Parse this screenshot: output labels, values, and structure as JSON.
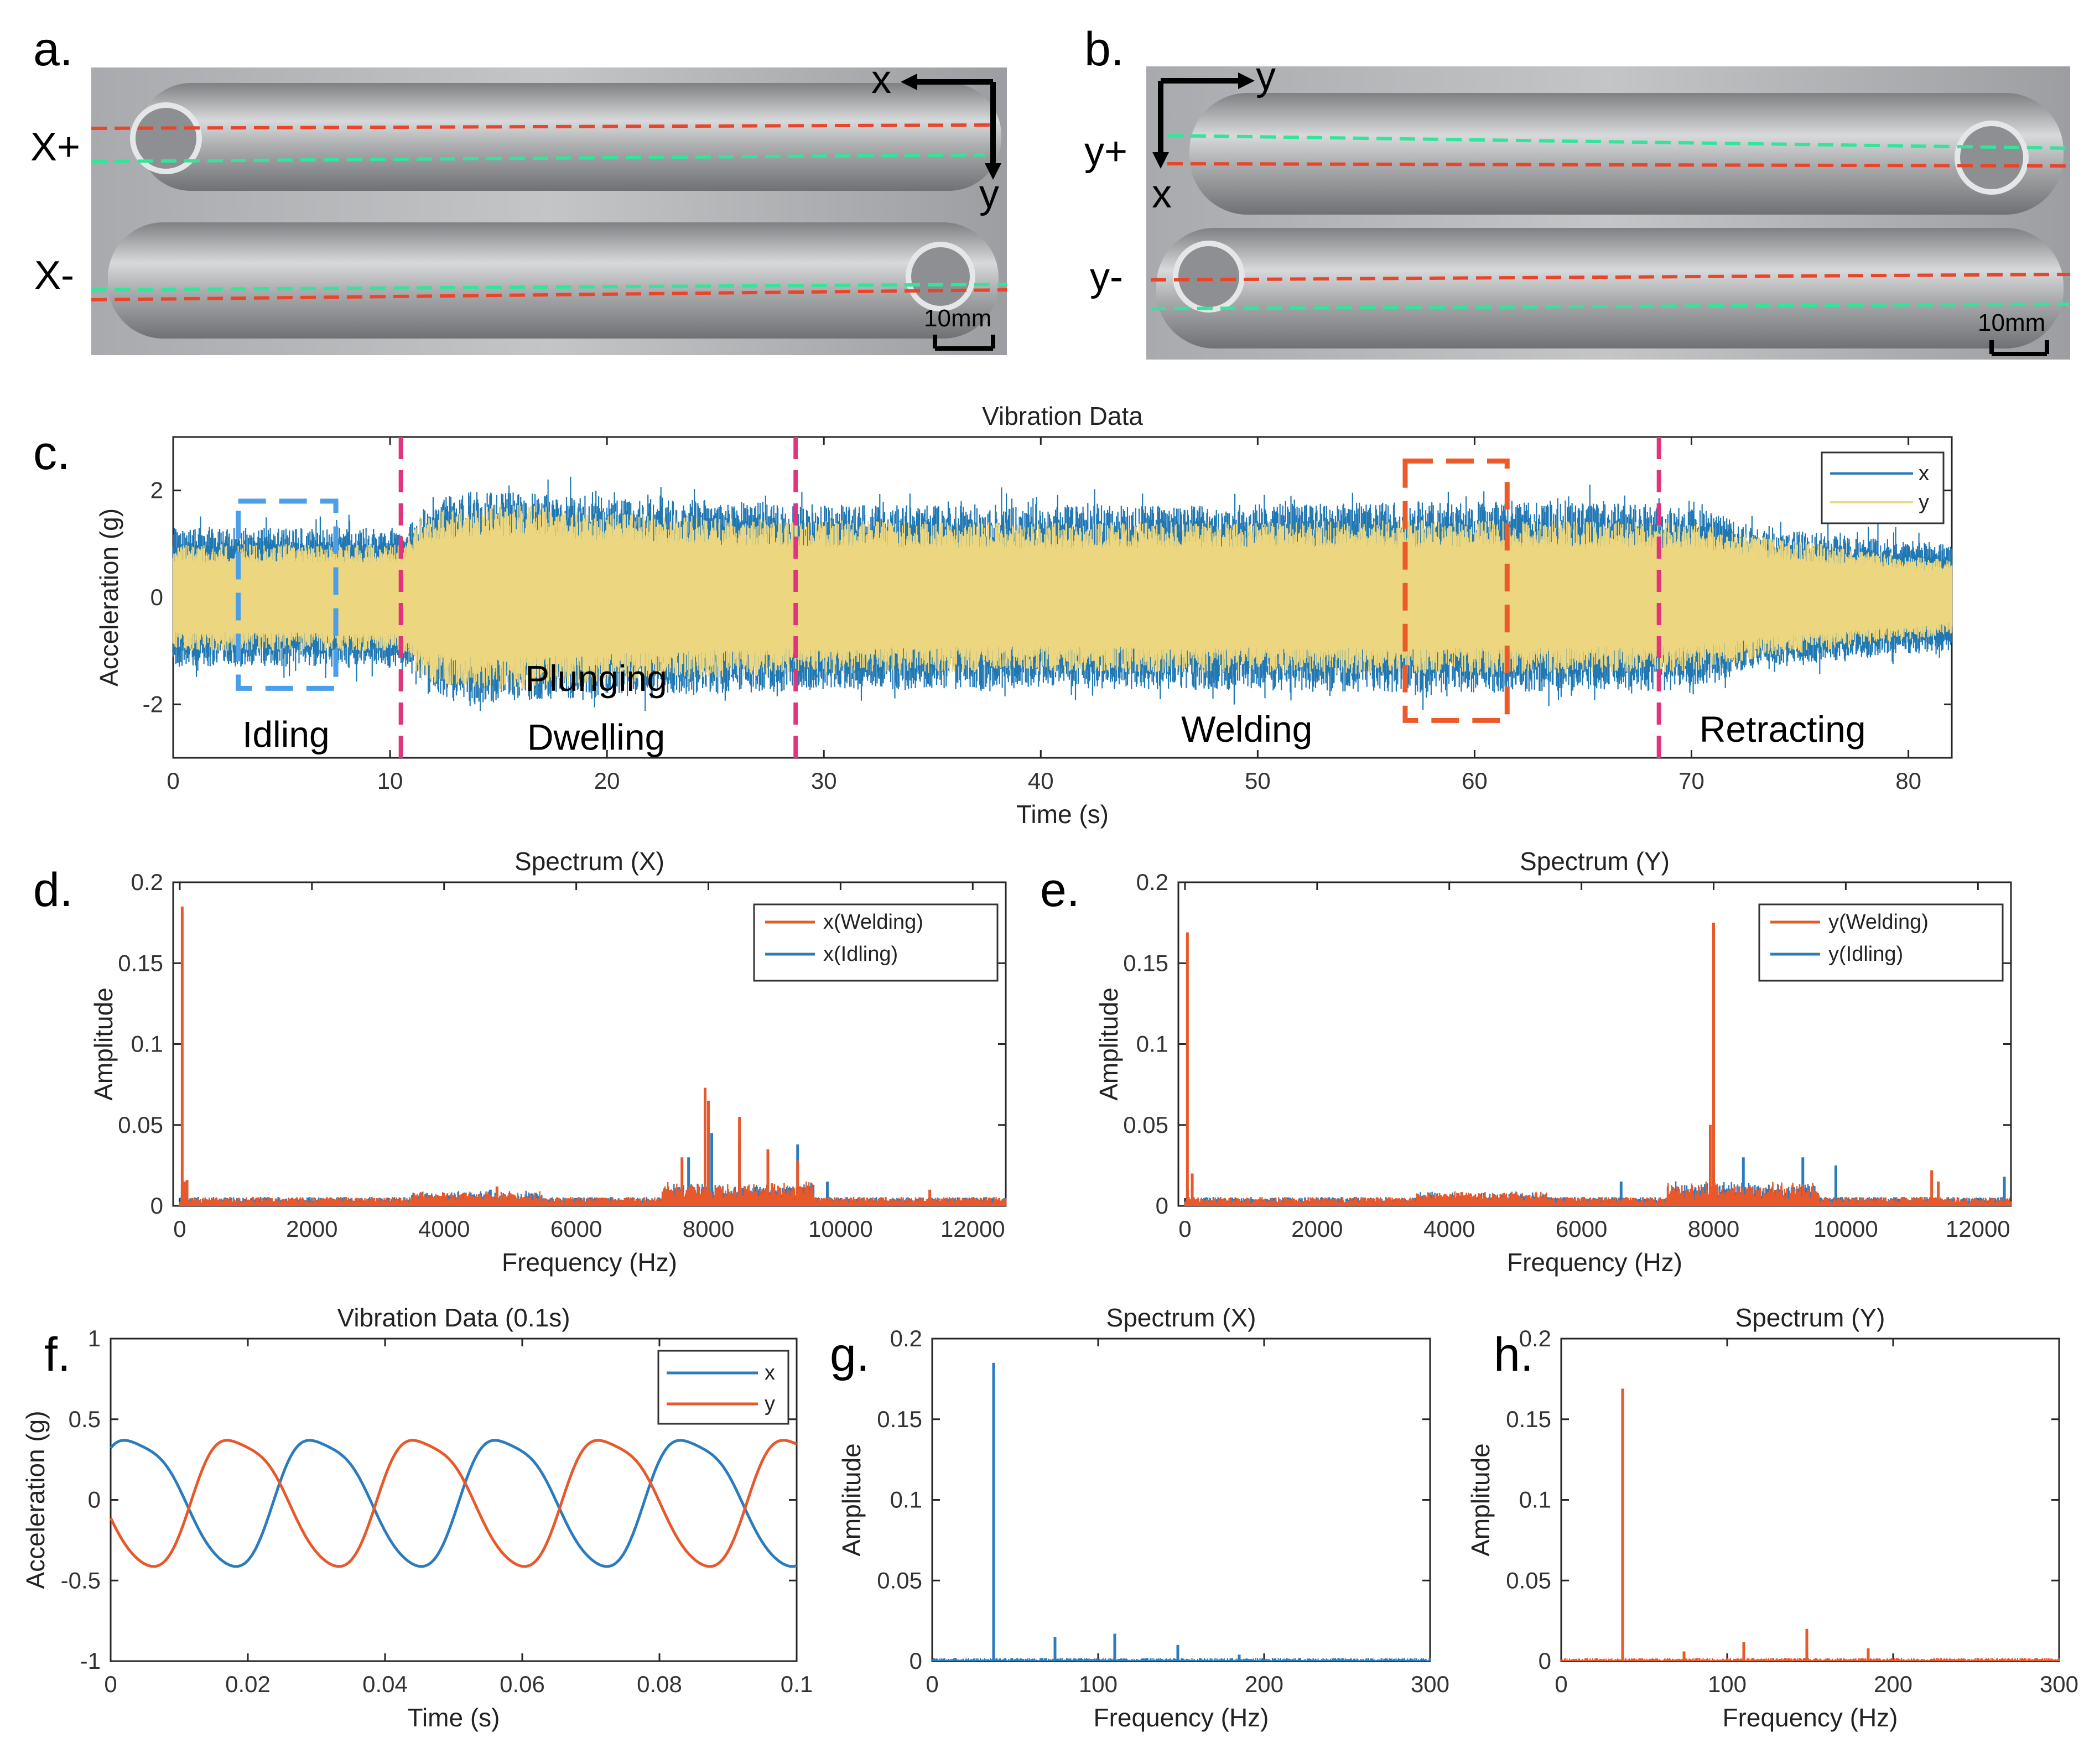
{
  "panel_letters": {
    "a": "a.",
    "b": "b.",
    "c": "c.",
    "d": "d.",
    "e": "e.",
    "f": "f.",
    "g": "g.",
    "h": "h."
  },
  "photo_a": {
    "axis_x": "x",
    "axis_y": "y",
    "label_plus": "X+",
    "label_minus": "X-",
    "scale": "10mm",
    "colors": {
      "red_line": "#e8452a",
      "green_line": "#33e49a",
      "metal": "#b7b9bb"
    }
  },
  "photo_b": {
    "axis_x": "x",
    "axis_y": "y",
    "label_plus": "y+",
    "label_minus": "y-",
    "scale": "10mm"
  },
  "chart_data": [
    {
      "id": "c",
      "type": "area",
      "title": "Vibration Data",
      "xlabel": "Time (s)",
      "ylabel": "Acceleration (g)",
      "xlim": [
        0,
        82
      ],
      "ylim": [
        -3,
        3
      ],
      "xticks": [
        0,
        10,
        20,
        30,
        40,
        50,
        60,
        70,
        80
      ],
      "yticks": [
        2,
        0,
        -2
      ],
      "legend": {
        "position": "top-right",
        "entries": [
          "x",
          "y"
        ]
      },
      "series": [
        {
          "name": "x",
          "color": "#1f77b4",
          "envelope": [
            [
              0,
              1.3
            ],
            [
              10.5,
              1.3
            ],
            [
              13,
              2.0
            ],
            [
              20,
              1.9
            ],
            [
              28.5,
              1.75
            ],
            [
              40,
              1.7
            ],
            [
              50,
              1.75
            ],
            [
              60,
              1.8
            ],
            [
              68,
              1.75
            ],
            [
              71,
              1.6
            ],
            [
              73,
              1.3
            ],
            [
              82,
              1.0
            ]
          ]
        },
        {
          "name": "y",
          "color": "#ecd67f",
          "envelope": [
            [
              0,
              1.0
            ],
            [
              10.5,
              1.0
            ],
            [
              11.5,
              1.6
            ],
            [
              15,
              1.75
            ],
            [
              25,
              1.5
            ],
            [
              28.5,
              1.45
            ],
            [
              40,
              1.4
            ],
            [
              60,
              1.45
            ],
            [
              70,
              1.4
            ],
            [
              73,
              1.15
            ],
            [
              82,
              0.7
            ]
          ]
        }
      ],
      "phase_lines": [
        10.5,
        28.7,
        68.5
      ],
      "phase_labels": [
        "Idling",
        "Plunging",
        "Dwelling",
        "Welding",
        "Retracting"
      ],
      "highlight_boxes": [
        {
          "name": "idling-window",
          "x": [
            3,
            7.5
          ],
          "y": [
            -1.7,
            1.8
          ],
          "color": "#4a9fe8"
        },
        {
          "name": "welding-window",
          "x": [
            56.8,
            61.5
          ],
          "y": [
            -2.3,
            2.55
          ],
          "color": "#ec5a2a"
        }
      ],
      "colors": {
        "phase_line": "#e2337e"
      }
    },
    {
      "id": "d",
      "type": "line",
      "title": "Spectrum (X)",
      "xlabel": "Frequency (Hz)",
      "ylabel": "Amplitude",
      "xlim": [
        -100,
        12500
      ],
      "ylim": [
        0,
        0.2
      ],
      "xticks": [
        0,
        2000,
        4000,
        6000,
        8000,
        10000,
        12000
      ],
      "yticks": [
        0,
        0.05,
        0.1,
        0.15,
        0.2
      ],
      "legend": {
        "position": "top-right",
        "entries": [
          "x(Welding)",
          "x(Idling)"
        ]
      },
      "series": [
        {
          "name": "x(Welding)",
          "color": "#e8582a",
          "peaks": [
            [
              37,
              0.185
            ],
            [
              74,
              0.015
            ],
            [
              110,
              0.016
            ],
            [
              4800,
              0.012
            ],
            [
              7600,
              0.03
            ],
            [
              7950,
              0.073
            ],
            [
              8000,
              0.065
            ],
            [
              8470,
              0.055
            ],
            [
              8900,
              0.035
            ],
            [
              9350,
              0.028
            ],
            [
              11350,
              0.01
            ]
          ]
        },
        {
          "name": "x(Idling)",
          "color": "#2b7bbf",
          "peaks": [
            [
              37,
              0.013
            ],
            [
              4700,
              0.01
            ],
            [
              7700,
              0.03
            ],
            [
              7950,
              0.06
            ],
            [
              8050,
              0.045
            ],
            [
              8470,
              0.04
            ],
            [
              9350,
              0.038
            ],
            [
              9800,
              0.015
            ]
          ]
        }
      ]
    },
    {
      "id": "e",
      "type": "line",
      "title": "Spectrum (Y)",
      "xlabel": "Frequency (Hz)",
      "ylabel": "Amplitude",
      "xlim": [
        -100,
        12500
      ],
      "ylim": [
        0,
        0.2
      ],
      "xticks": [
        0,
        2000,
        4000,
        6000,
        8000,
        10000,
        12000
      ],
      "yticks": [
        0,
        0.05,
        0.1,
        0.15,
        0.2
      ],
      "legend": {
        "position": "top-right",
        "entries": [
          "y(Welding)",
          "y(Idling)"
        ]
      },
      "series": [
        {
          "name": "y(Welding)",
          "color": "#e8582a",
          "peaks": [
            [
              37,
              0.169
            ],
            [
              110,
              0.02
            ],
            [
              7950,
              0.05
            ],
            [
              8000,
              0.175
            ],
            [
              11300,
              0.022
            ],
            [
              11400,
              0.015
            ]
          ]
        },
        {
          "name": "y(Idling)",
          "color": "#2b7bbf",
          "peaks": [
            [
              37,
              0.01
            ],
            [
              6600,
              0.015
            ],
            [
              7950,
              0.05
            ],
            [
              8000,
              0.107
            ],
            [
              8450,
              0.03
            ],
            [
              9350,
              0.03
            ],
            [
              9850,
              0.025
            ],
            [
              12400,
              0.018
            ]
          ]
        }
      ]
    },
    {
      "id": "f",
      "type": "line",
      "title": "Vibration Data (0.1s)",
      "xlabel": "Time (s)",
      "ylabel": "Acceleration (g)",
      "xlim": [
        0,
        0.1
      ],
      "ylim": [
        -1,
        1
      ],
      "xticks": [
        0,
        0.02,
        0.04,
        0.06,
        0.08,
        0.1
      ],
      "xtick_labels": [
        "0",
        "0.02",
        "0.04",
        "0.06",
        "0.08",
        "0.1"
      ],
      "yticks": [
        1,
        0.5,
        0,
        -0.5,
        -1
      ],
      "ytick_labels": [
        "1",
        "0.5",
        "0",
        "-0.5",
        "-1"
      ],
      "legend": {
        "position": "top-right",
        "entries": [
          "x",
          "y"
        ]
      },
      "series": [
        {
          "name": "x",
          "color": "#2b7bbf",
          "frequency_hz": 37,
          "amplitude": 0.4,
          "phase_deg": 40
        },
        {
          "name": "y",
          "color": "#e8582a",
          "frequency_hz": 37,
          "amplitude": 0.4,
          "phase_deg": 200
        }
      ]
    },
    {
      "id": "g",
      "type": "line",
      "title": "Spectrum (X)",
      "xlabel": "Frequency (Hz)",
      "ylabel": "Amplitude",
      "xlim": [
        0,
        300
      ],
      "ylim": [
        0,
        0.2
      ],
      "xticks": [
        0,
        100,
        200,
        300
      ],
      "yticks": [
        0,
        0.05,
        0.1,
        0.15,
        0.2
      ],
      "series": [
        {
          "name": "x",
          "color": "#2b7bbf",
          "peaks": [
            [
              37,
              0.185
            ],
            [
              74,
              0.015
            ],
            [
              110,
              0.017
            ],
            [
              148,
              0.01
            ],
            [
              185,
              0.004
            ]
          ]
        }
      ]
    },
    {
      "id": "h",
      "type": "line",
      "title": "Spectrum (Y)",
      "xlabel": "Frequency (Hz)",
      "ylabel": "Amplitude",
      "xlim": [
        0,
        300
      ],
      "ylim": [
        0,
        0.2
      ],
      "xticks": [
        0,
        100,
        200,
        300
      ],
      "yticks": [
        0,
        0.05,
        0.1,
        0.15,
        0.2
      ],
      "series": [
        {
          "name": "y",
          "color": "#e8582a",
          "peaks": [
            [
              37,
              0.169
            ],
            [
              74,
              0.006
            ],
            [
              110,
              0.012
            ],
            [
              148,
              0.02
            ],
            [
              185,
              0.008
            ]
          ]
        }
      ]
    }
  ]
}
